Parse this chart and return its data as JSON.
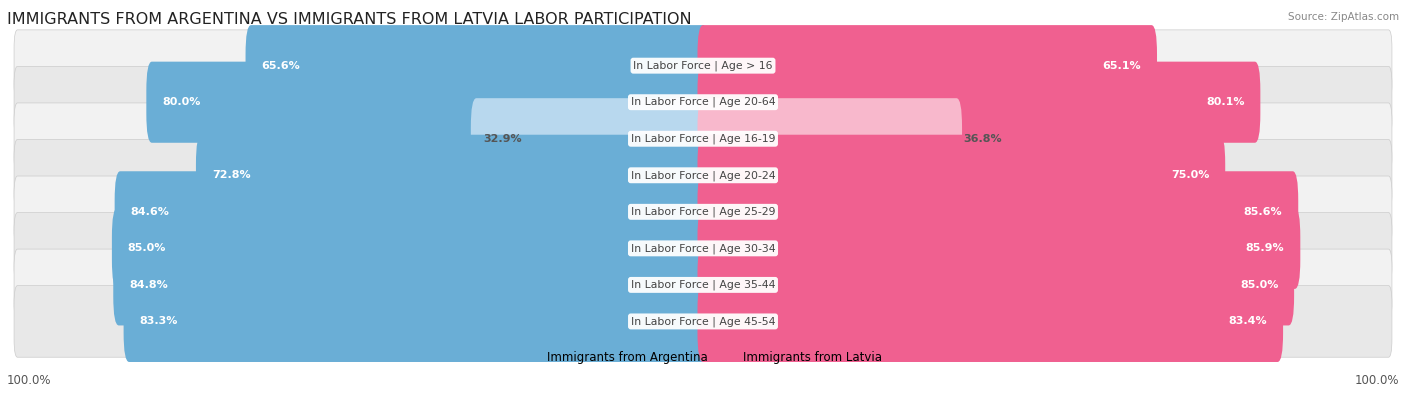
{
  "title": "IMMIGRANTS FROM ARGENTINA VS IMMIGRANTS FROM LATVIA LABOR PARTICIPATION",
  "source": "Source: ZipAtlas.com",
  "categories": [
    "In Labor Force | Age > 16",
    "In Labor Force | Age 20-64",
    "In Labor Force | Age 16-19",
    "In Labor Force | Age 20-24",
    "In Labor Force | Age 25-29",
    "In Labor Force | Age 30-34",
    "In Labor Force | Age 35-44",
    "In Labor Force | Age 45-54"
  ],
  "argentina_values": [
    65.6,
    80.0,
    32.9,
    72.8,
    84.6,
    85.0,
    84.8,
    83.3
  ],
  "latvia_values": [
    65.1,
    80.1,
    36.8,
    75.0,
    85.6,
    85.9,
    85.0,
    83.4
  ],
  "argentina_color": "#6aaed6",
  "latvia_color": "#f06090",
  "argentina_color_light": "#b8d8ee",
  "latvia_color_light": "#f8b8cc",
  "row_bg_color_odd": "#f2f2f2",
  "row_bg_color_even": "#e8e8e8",
  "row_border_color": "#cccccc",
  "legend_argentina": "Immigrants from Argentina",
  "legend_latvia": "Immigrants from Latvia",
  "max_value": 100.0,
  "title_fontsize": 11.5,
  "label_fontsize": 7.8,
  "value_fontsize": 8.0,
  "axis_label_fontsize": 8.5,
  "background_color": "#ffffff"
}
